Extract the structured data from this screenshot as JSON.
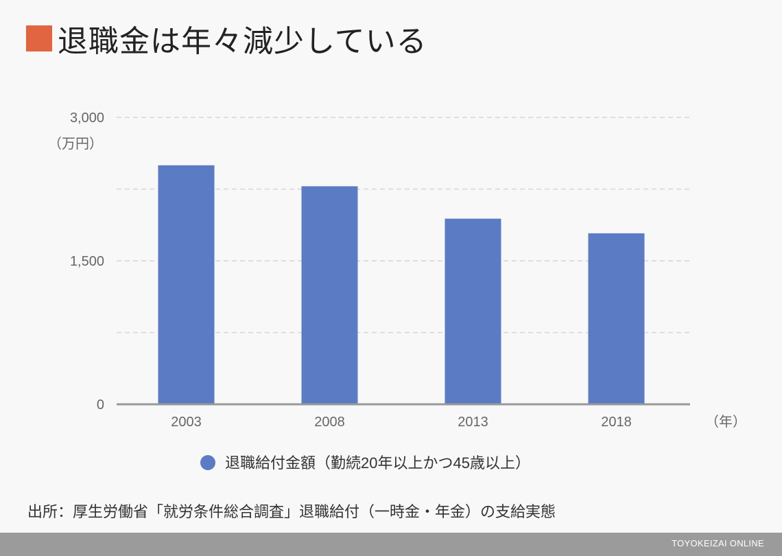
{
  "page": {
    "title": "退職金は年々減少している",
    "title_marker_color": "#e06540",
    "source": "出所：厚生労働省「就労条件総合調査」退職給付（一時金・年金）の支給実態",
    "brand": "TOYOKEIZAI ONLINE"
  },
  "chart_data": {
    "type": "bar",
    "categories": [
      "2003",
      "2008",
      "2013",
      "2018"
    ],
    "series": [
      {
        "name": "退職給付金額（勤続20年以上かつ45歳以上）",
        "values": [
          2499,
          2280,
          1941,
          1788
        ],
        "color": "#5b7cc4"
      }
    ],
    "ylim": [
      0,
      3000
    ],
    "yticks": [
      {
        "value": 0,
        "label": "0"
      },
      {
        "value": 1500,
        "label": "1,500"
      },
      {
        "value": 3000,
        "label": "3,000"
      }
    ],
    "y_unit_label": "（万円）",
    "x_unit_label": "（年）",
    "gridlines": [
      750,
      1500,
      2250,
      3000
    ],
    "legend_position": "bottom"
  }
}
